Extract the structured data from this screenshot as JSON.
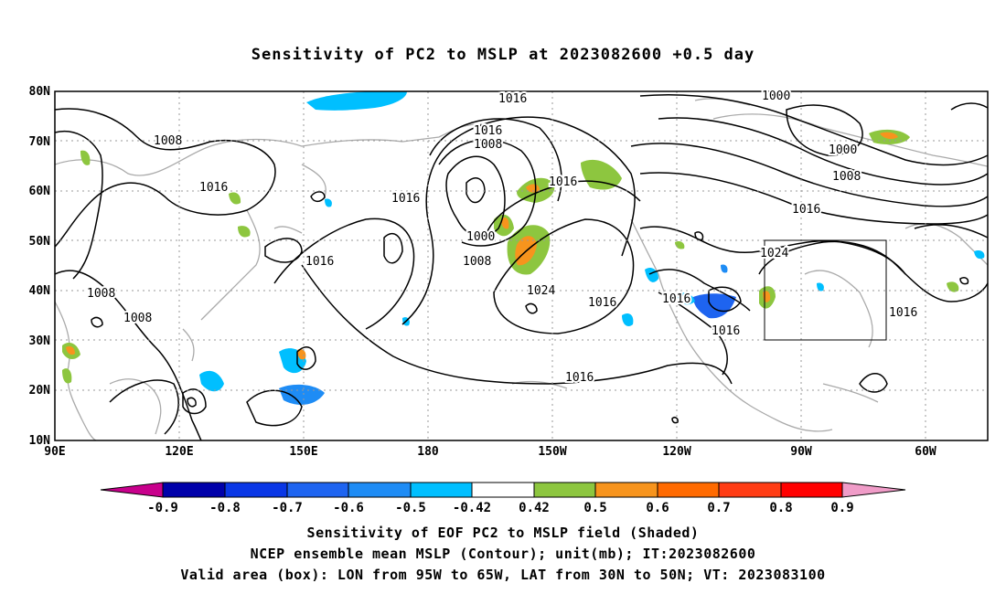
{
  "title": "Sensitivity of PC2 to MSLP at 2023082600 +0.5 day",
  "map": {
    "lat_labels": [
      "80N",
      "70N",
      "60N",
      "50N",
      "40N",
      "30N",
      "20N",
      "10N"
    ],
    "lon_labels": [
      "90E",
      "120E",
      "150E",
      "180",
      "150W",
      "120W",
      "90W",
      "60W"
    ],
    "contour_labels": [
      "1016",
      "1000",
      "1016",
      "1008",
      "1000",
      "1008",
      "1016",
      "1016",
      "1016",
      "1008",
      "1016",
      "1000",
      "1008",
      "1016",
      "1024",
      "1016",
      "1008",
      "1008",
      "1024",
      "1016",
      "1016",
      "1016",
      "1016",
      "1016"
    ],
    "shading_colors": {
      "green": "#8dc63f",
      "orange": "#f7941d",
      "cyan": "#00bfff",
      "blue": "#1e64f0",
      "land": "#aaaaaa"
    }
  },
  "colorbar": {
    "labels": [
      "-0.9",
      "-0.8",
      "-0.7",
      "-0.6",
      "-0.5",
      "-0.42",
      "0.42",
      "0.5",
      "0.6",
      "0.7",
      "0.8",
      "0.9"
    ],
    "colors": [
      "#0000aa",
      "#0a37e6",
      "#1e64f0",
      "#1e8cf5",
      "#00bfff",
      "#ffffff",
      "#8dc63f",
      "#f7941d",
      "#ff6a00",
      "#ff3c14",
      "#ff0000"
    ],
    "low_end_color": "#c8008c",
    "high_end_color": "#f09cc8"
  },
  "captions": {
    "line1": "Sensitivity of EOF PC2 to MSLP field (Shaded)",
    "line2": "NCEP ensemble mean MSLP (Contour); unit(mb); IT:2023082600",
    "line3": "Valid area (box): LON from 95W to 65W, LAT from 30N to 50N; VT: 2023083100"
  }
}
